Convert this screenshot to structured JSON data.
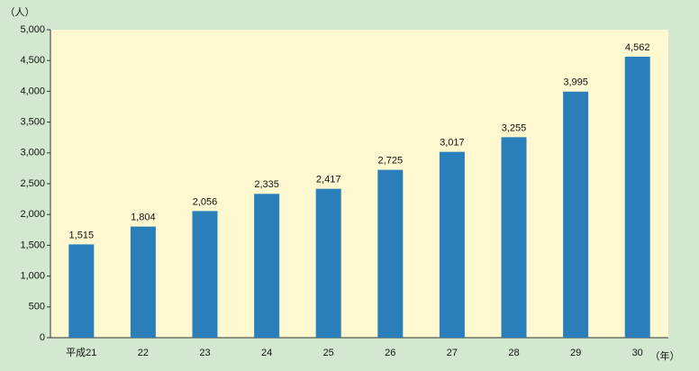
{
  "chart_data": {
    "type": "bar",
    "y_label": "（人）",
    "x_label": "（年）",
    "categories": [
      "平成21",
      "22",
      "23",
      "24",
      "25",
      "26",
      "27",
      "28",
      "29",
      "30"
    ],
    "values": [
      1515,
      1804,
      2056,
      2335,
      2417,
      2725,
      3017,
      3255,
      3995,
      4562
    ],
    "value_labels": [
      "1,515",
      "1,804",
      "2,056",
      "2,335",
      "2,417",
      "2,725",
      "3,017",
      "3,255",
      "3,995",
      "4,562"
    ],
    "color": "#2a7fba",
    "ylim": [
      0,
      5000
    ],
    "yticks": [
      0,
      500,
      {
        "value": 1000,
        "label": "1,000"
      },
      {
        "value": 1500,
        "label": "1,500"
      },
      {
        "value": 2000,
        "label": "2,000"
      },
      {
        "value": 2500,
        "label": "2,500"
      },
      {
        "value": 3000,
        "label": "3,000"
      },
      {
        "value": 3500,
        "label": "3,500"
      },
      {
        "value": 4000,
        "label": "4,000"
      },
      {
        "value": 4500,
        "label": "4,500"
      },
      {
        "value": 5000,
        "label": "5,000"
      }
    ],
    "grid": false
  }
}
